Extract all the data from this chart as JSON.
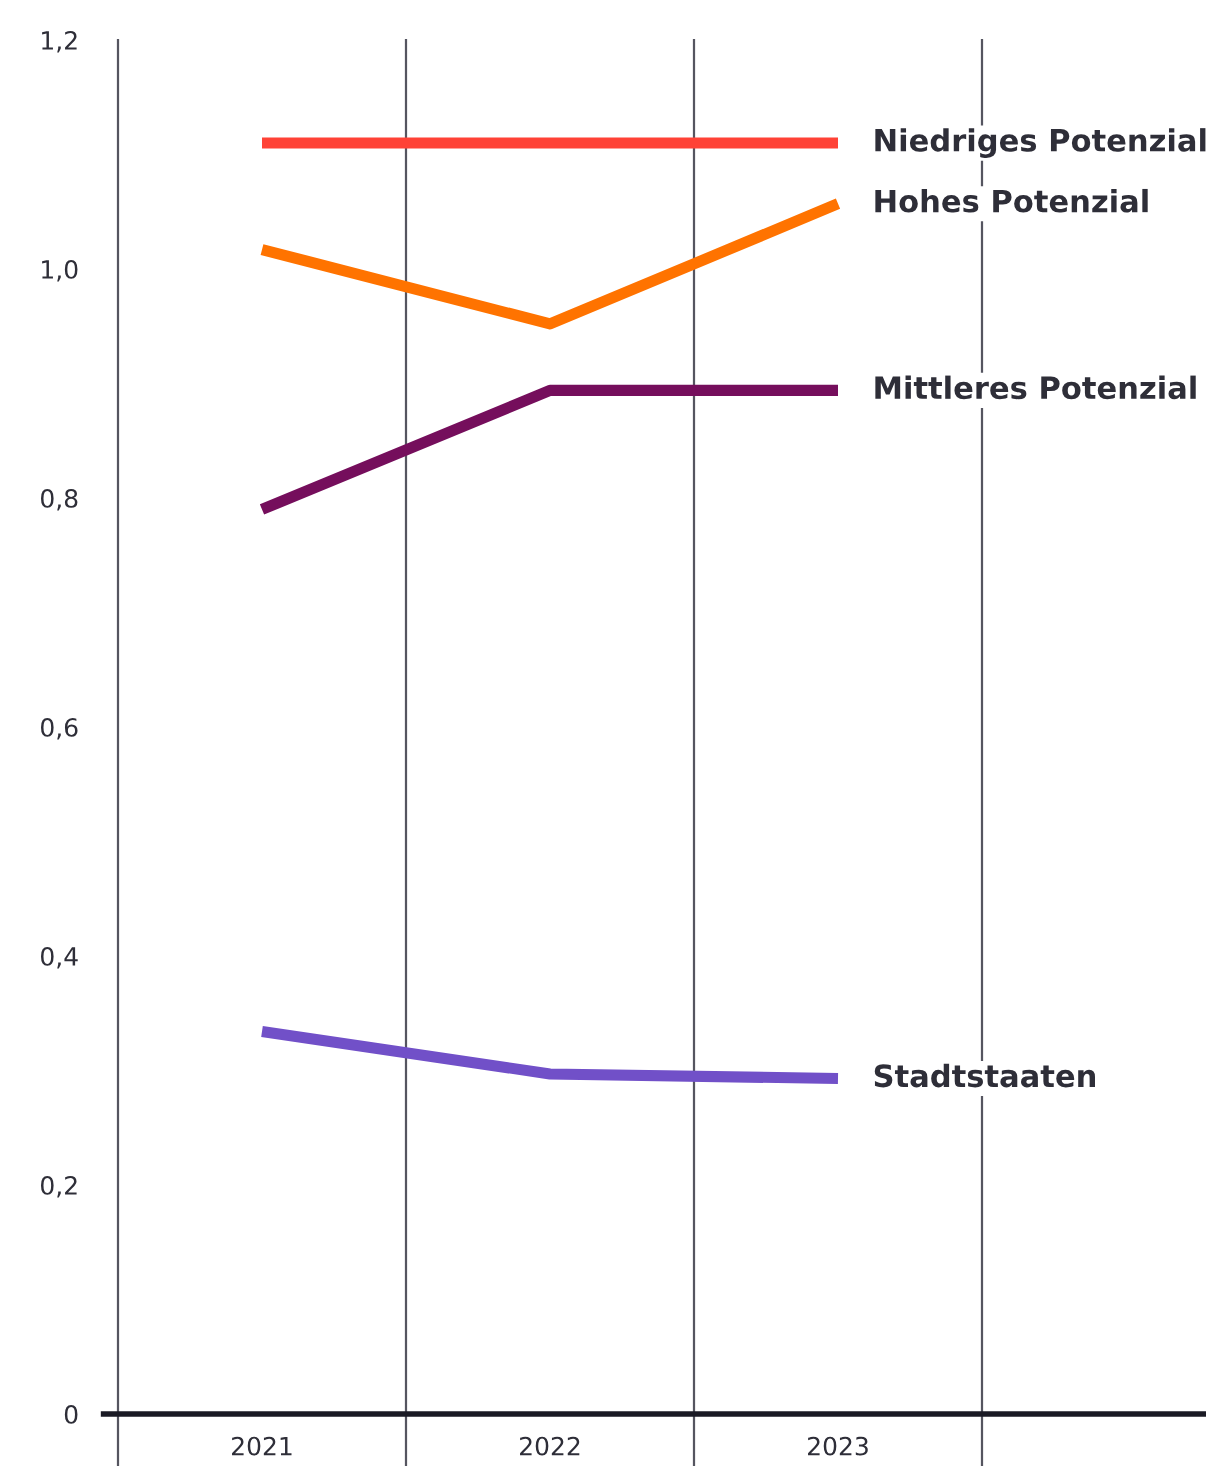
{
  "chart_data": {
    "type": "line",
    "categories": [
      "2021",
      "2022",
      "2023",
      null
    ],
    "series": [
      {
        "name": "Niedriges Potenzial",
        "color": "#ff4236",
        "values": [
          1.11,
          1.11,
          1.11,
          null
        ]
      },
      {
        "name": "Hohes Potenzial",
        "color": "#ff7300",
        "values": [
          1.017,
          0.952,
          1.057,
          null
        ]
      },
      {
        "name": "Mittleres Potenzial",
        "color": "#750e5c",
        "values": [
          0.79,
          0.894,
          0.894,
          null
        ]
      },
      {
        "name": "Stadtstaaten",
        "color": "#7150c8",
        "values": [
          0.334,
          0.297,
          0.293,
          null
        ]
      }
    ],
    "ylim": [
      0,
      1.2
    ],
    "yticks": [
      0,
      {
        "value": 0.2,
        "label": "0,2"
      },
      {
        "value": 0.4,
        "label": "0,4"
      },
      {
        "value": 0.6,
        "label": "0,6"
      },
      {
        "value": 0.8,
        "label": "0,8"
      },
      {
        "value": 1.0,
        "label": "1,0"
      },
      {
        "value": 1.2,
        "label": "1,2"
      }
    ],
    "grid": "x",
    "legend": false,
    "marker": "none",
    "line_style": "solid"
  }
}
